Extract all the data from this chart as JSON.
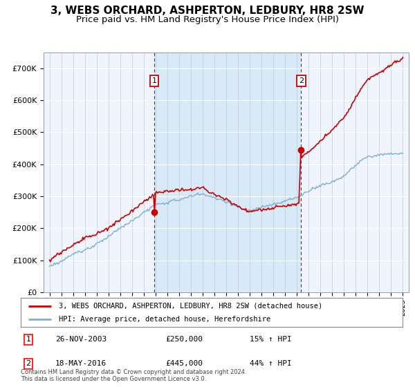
{
  "title": "3, WEBS ORCHARD, ASHPERTON, LEDBURY, HR8 2SW",
  "subtitle": "Price paid vs. HM Land Registry's House Price Index (HPI)",
  "ylim": [
    0,
    750000
  ],
  "yticks": [
    0,
    100000,
    200000,
    300000,
    400000,
    500000,
    600000,
    700000
  ],
  "ytick_labels": [
    "£0",
    "£100K",
    "£200K",
    "£300K",
    "£400K",
    "£500K",
    "£600K",
    "£700K"
  ],
  "hpi_color": "#7bafd4",
  "price_color": "#cc0000",
  "bg_between_color": "#ddeeff",
  "sale1_x": 2003.9,
  "sale1_price": 250000,
  "sale2_x": 2016.37,
  "sale2_price": 445000,
  "sale1_label": "1",
  "sale2_label": "2",
  "sale1_date": "26-NOV-2003",
  "sale2_date": "18-MAY-2016",
  "sale1_hpi": "15% ↑ HPI",
  "sale2_hpi": "44% ↑ HPI",
  "legend_label1": "3, WEBS ORCHARD, ASHPERTON, LEDBURY, HR8 2SW (detached house)",
  "legend_label2": "HPI: Average price, detached house, Herefordshire",
  "footer": "Contains HM Land Registry data © Crown copyright and database right 2024.\nThis data is licensed under the Open Government Licence v3.0.",
  "title_fontsize": 11,
  "subtitle_fontsize": 9.5
}
